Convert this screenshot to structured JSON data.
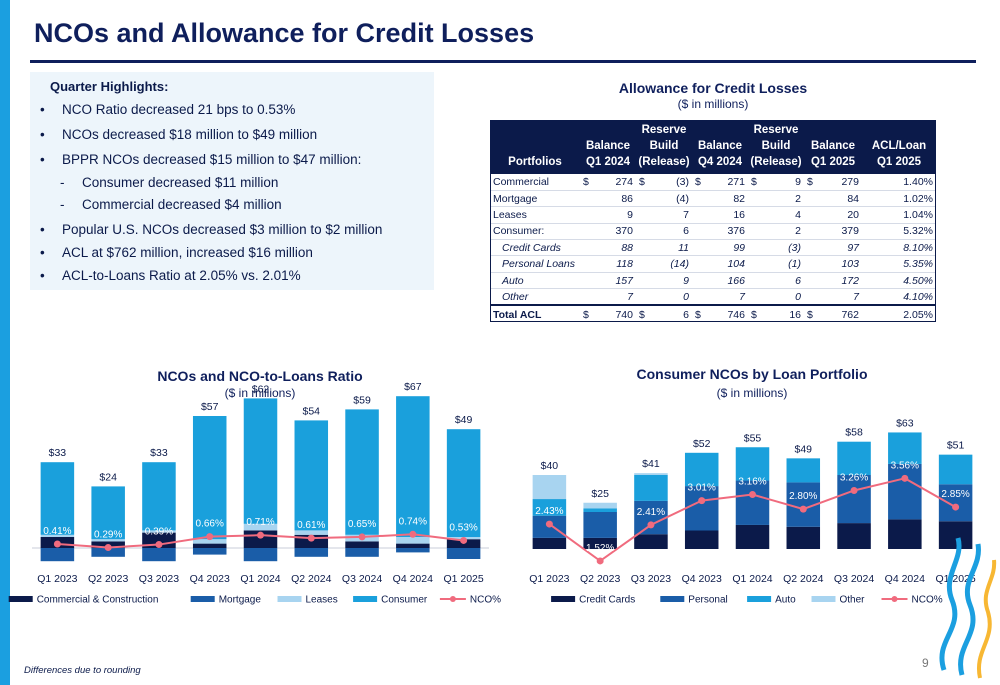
{
  "title": "NCOs and Allowance for Credit Losses",
  "highlights": {
    "heading": "Quarter Highlights:",
    "items": [
      {
        "text": "NCO Ratio decreased 21 bps to 0.53%",
        "level": 1
      },
      {
        "text": "NCOs decreased $18 million to $49 million",
        "level": 1
      },
      {
        "text": "BPPR NCOs decreased $15 million to $47 million:",
        "level": 1
      },
      {
        "text": "Consumer decreased $11 million",
        "level": 2
      },
      {
        "text": "Commercial decreased $4 million",
        "level": 2
      },
      {
        "text": "Popular U.S. NCOs decreased $3 million to $2 million",
        "level": 1
      },
      {
        "text": "ACL at $762 million, increased $16 million",
        "level": 1
      },
      {
        "text": "ACL-to-Loans Ratio at 2.05% vs. 2.01%",
        "level": 1
      }
    ]
  },
  "acl_table": {
    "title": "Allowance for Credit Losses",
    "subtitle": "($ in millions)",
    "columns": [
      [
        "Portfolios"
      ],
      [
        "Balance",
        "Q1 2024"
      ],
      [
        "Reserve",
        "Build",
        "(Release)"
      ],
      [
        "Balance",
        "Q4 2024"
      ],
      [
        "Reserve",
        "Build",
        "(Release)"
      ],
      [
        "Balance",
        "Q1 2025"
      ],
      [
        "ACL/Loan",
        "Q1 2025"
      ]
    ],
    "rows": [
      {
        "label": "Commercial",
        "cells": [
          "274",
          "(3)",
          "271",
          "9",
          "279",
          "1.40%"
        ],
        "dollar": true,
        "style": "main"
      },
      {
        "label": "Mortgage",
        "cells": [
          "86",
          "(4)",
          "82",
          "2",
          "84",
          "1.02%"
        ],
        "dollar": false,
        "style": "main"
      },
      {
        "label": "Leases",
        "cells": [
          "9",
          "7",
          "16",
          "4",
          "20",
          "1.04%"
        ],
        "dollar": false,
        "style": "main"
      },
      {
        "label": "Consumer:",
        "cells": [
          "370",
          "6",
          "376",
          "2",
          "379",
          "5.32%"
        ],
        "dollar": false,
        "style": "main"
      },
      {
        "label": "Credit Cards",
        "cells": [
          "88",
          "11",
          "99",
          "(3)",
          "97",
          "8.10%"
        ],
        "dollar": false,
        "style": "sub"
      },
      {
        "label": "Personal Loans",
        "cells": [
          "118",
          "(14)",
          "104",
          "(1)",
          "103",
          "5.35%"
        ],
        "dollar": false,
        "style": "sub"
      },
      {
        "label": "Auto",
        "cells": [
          "157",
          "9",
          "166",
          "6",
          "172",
          "4.50%"
        ],
        "dollar": false,
        "style": "sub"
      },
      {
        "label": "Other",
        "cells": [
          "7",
          "0",
          "7",
          "0",
          "7",
          "4.10%"
        ],
        "dollar": false,
        "style": "sub"
      },
      {
        "label": "Total ACL",
        "cells": [
          "740",
          "6",
          "746",
          "16",
          "762",
          "2.05%"
        ],
        "dollar": true,
        "style": "total"
      }
    ],
    "dollar_sign": "$"
  },
  "chart_data": [
    {
      "type": "bar",
      "stacked": true,
      "title": "NCOs and NCO-to-Loans Ratio",
      "subtitle": "($ in millions)",
      "categories": [
        "Q1 2023",
        "Q2 2023",
        "Q3 2023",
        "Q4 2023",
        "Q1 2024",
        "Q2 2024",
        "Q3 2024",
        "Q4 2024",
        "Q1 2025"
      ],
      "series": [
        {
          "name": "Commercial & Construction",
          "color": "#0b1a4a",
          "values": [
            5,
            3,
            7,
            2,
            8,
            6,
            3,
            2,
            4
          ]
        },
        {
          "name": "Mortgage",
          "color": "#1a5da8",
          "values": [
            -6,
            -4,
            -6,
            -3,
            -6,
            -4,
            -4,
            -2,
            -5
          ]
        },
        {
          "name": "Leases",
          "color": "#a8d4f0",
          "values": [
            1,
            1,
            1,
            2,
            3,
            2,
            3,
            3,
            1
          ]
        },
        {
          "name": "Consumer",
          "color": "#1aa0dc",
          "values": [
            33,
            24,
            31,
            56,
            57,
            50,
            57,
            64,
            49
          ]
        }
      ],
      "totals": [
        "$33",
        "$24",
        "$33",
        "$57",
        "$62",
        "$54",
        "$59",
        "$67",
        "$49"
      ],
      "line": {
        "name": "NCO%",
        "color": "#f06b7e",
        "values": [
          0.41,
          0.29,
          0.39,
          0.66,
          0.71,
          0.61,
          0.65,
          0.74,
          0.53
        ],
        "labels": [
          "0.41%",
          "0.29%",
          "0.39%",
          "0.66%",
          "0.71%",
          "0.61%",
          "0.65%",
          "0.74%",
          "0.53%"
        ]
      },
      "ylim": [
        -8,
        70
      ],
      "y2lim": [
        0,
        3
      ],
      "grid": false,
      "legend": "bottom"
    },
    {
      "type": "bar",
      "stacked": true,
      "title": "Consumer NCOs by Loan Portfolio",
      "subtitle": "($ in millions)",
      "categories": [
        "Q1 2023",
        "Q2 2023",
        "Q3 2023",
        "Q4 2023",
        "Q1 2024",
        "Q2 2024",
        "Q3 2024",
        "Q4 2024",
        "Q1 2025"
      ],
      "series": [
        {
          "name": "Credit Cards",
          "color": "#0b1a4a",
          "values": [
            6,
            6,
            8,
            10,
            13,
            12,
            14,
            16,
            15
          ]
        },
        {
          "name": "Personal",
          "color": "#1a5da8",
          "values": [
            12,
            14,
            18,
            24,
            24,
            24,
            26,
            30,
            20
          ]
        },
        {
          "name": "Auto",
          "color": "#1aa0dc",
          "values": [
            9,
            2,
            14,
            18,
            18,
            13,
            18,
            17,
            16
          ]
        },
        {
          "name": "Other",
          "color": "#a8d4f0",
          "values": [
            13,
            3,
            1,
            0,
            0,
            0,
            0,
            0,
            0
          ]
        }
      ],
      "totals": [
        "$40",
        "$25",
        "$41",
        "$52",
        "$55",
        "$49",
        "$58",
        "$63",
        "$51"
      ],
      "line": {
        "name": "NCO%",
        "color": "#f06b7e",
        "values": [
          2.43,
          1.52,
          2.41,
          3.01,
          3.16,
          2.8,
          3.26,
          3.56,
          2.85
        ],
        "labels": [
          "2.43%",
          "1.52%",
          "2.41%",
          "3.01%",
          "3.16%",
          "2.80%",
          "3.26%",
          "3.56%",
          "2.85%"
        ]
      },
      "ylim": [
        0,
        70
      ],
      "y2lim": [
        1,
        5
      ],
      "grid": false,
      "legend": "bottom"
    }
  ],
  "footnote": "Differences due to rounding",
  "page_number": "9"
}
